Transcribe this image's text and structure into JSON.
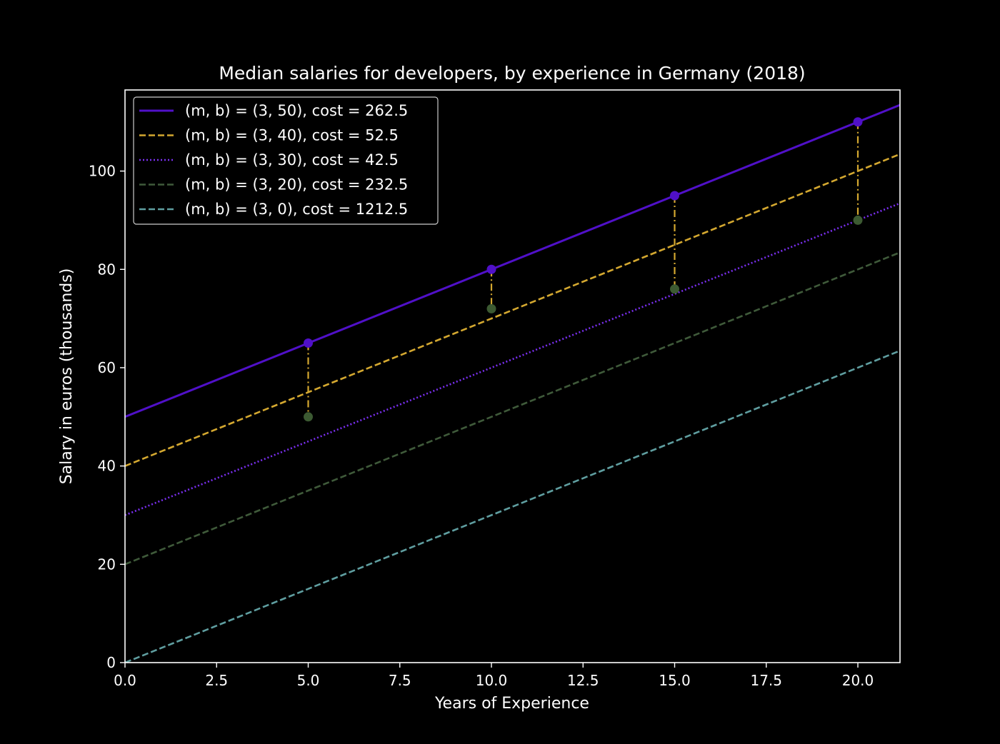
{
  "chart_data": {
    "type": "line",
    "title": "Median salaries for developers, by experience in Germany (2018)",
    "xlabel": "Years of Experience",
    "ylabel": "Salary in euros (thousands)",
    "xlim": [
      0,
      21.15
    ],
    "ylim": [
      0,
      116.5
    ],
    "xticks": [
      0,
      2.5,
      5,
      7.5,
      10,
      12.5,
      15,
      17.5,
      20
    ],
    "xtick_labels": [
      "0.0",
      "2.5",
      "5.0",
      "7.5",
      "10.0",
      "12.5",
      "15.0",
      "17.5",
      "20.0"
    ],
    "yticks": [
      0,
      20,
      40,
      60,
      80,
      100
    ],
    "ytick_labels": [
      "0",
      "20",
      "40",
      "60",
      "80",
      "100"
    ],
    "grid": false,
    "legend_position": "top-left",
    "background": "#000000",
    "axes_color": "#ffffff",
    "observed_points": {
      "x": [
        5,
        10,
        15,
        20
      ],
      "y": [
        50,
        72,
        76,
        90
      ],
      "color": "#3c5a32"
    },
    "series": [
      {
        "name": "(m, b) = (3, 50), cost = 262.5",
        "m": 3,
        "b": 50,
        "color": "#5010c8",
        "dash": "solid",
        "markers_at": [
          5,
          10,
          15,
          20
        ],
        "residual_color": "#d4a830"
      },
      {
        "name": "(m, b) = (3, 40), cost = 52.5",
        "m": 3,
        "b": 40,
        "color": "#d4a830",
        "dash": "dashed"
      },
      {
        "name": "(m, b) = (3, 30), cost = 42.5",
        "m": 3,
        "b": 30,
        "color": "#7a2ff0",
        "dash": "dotted"
      },
      {
        "name": "(m, b) = (3, 20), cost = 232.5",
        "m": 3,
        "b": 20,
        "color": "#3f5a3a",
        "dash": "dashed"
      },
      {
        "name": "(m, b) = (3, 0), cost = 1212.5",
        "m": 3,
        "b": 0,
        "color": "#5f9ea0",
        "dash": "dashed"
      }
    ]
  }
}
